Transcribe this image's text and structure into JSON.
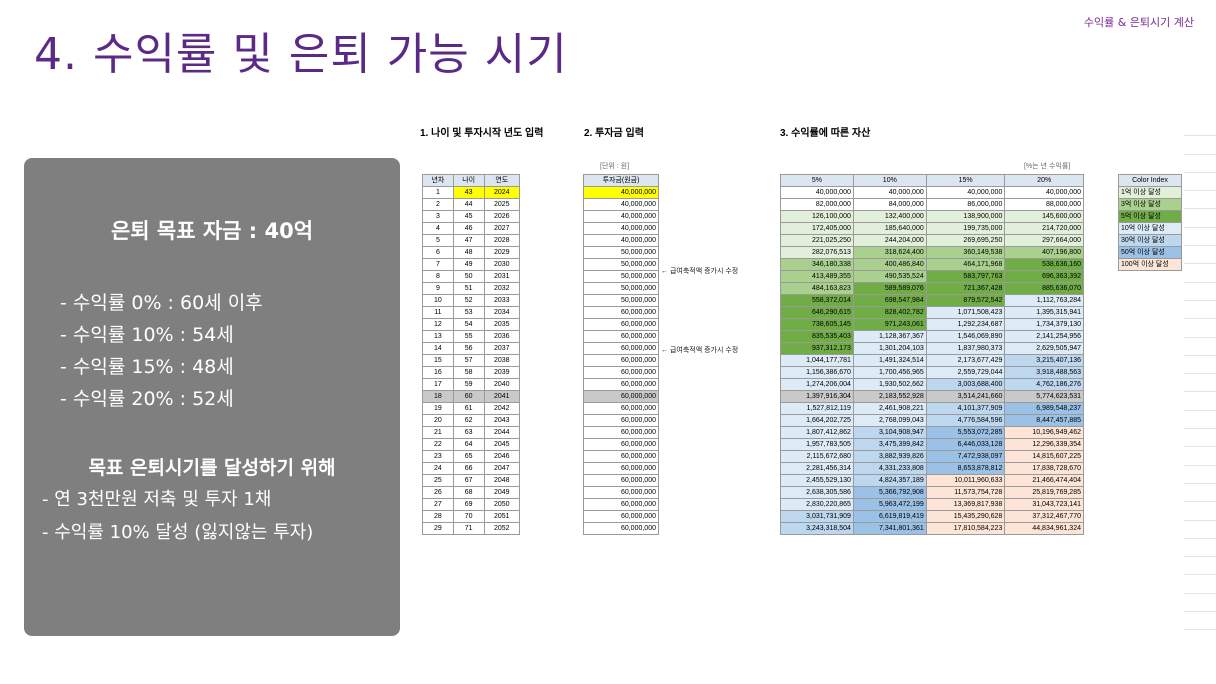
{
  "corner_label": "수익률 & 은퇴시기 계산",
  "title": "4. 수익률 및 은퇴 가능 시기",
  "panel": {
    "goal": "은퇴 목표 자금 : 40억",
    "rates": [
      "- 수익률   0% : 60세 이후",
      "- 수익률 10% : 54세",
      "- 수익률 15% : 48세",
      "- 수익률 20% : 52세"
    ],
    "subtitle": "목표 은퇴시기를 달성하기 위해",
    "notes": [
      "- 연 3천만원 저축 및 투자 1채",
      "- 수익률 10% 달성 (잃지않는 투자)"
    ]
  },
  "sheet": {
    "section1": "1. 나이 및 투자시작 년도 입력",
    "section2": "2. 투자금 입력",
    "section3": "3. 수익률에 따른 자산",
    "unit_won": "[단위 : 원]",
    "unit_rate": "[%는 년 수익률]",
    "headers1": [
      "년차",
      "나이",
      "연도"
    ],
    "header2": "투자금(원금)",
    "headers3": [
      "5%",
      "10%",
      "15%",
      "20%"
    ],
    "memo": "← 급여축적액 증가시 수정",
    "color_index_header": "Color Index",
    "color_index": [
      {
        "label": "1억 이상 달성",
        "color": "#e2efda"
      },
      {
        "label": "3억 이상 달성",
        "color": "#a9d08e"
      },
      {
        "label": "5억 이상 달성",
        "color": "#70ad47"
      },
      {
        "label": "10억 이상 달성",
        "color": "#ddebf7"
      },
      {
        "label": "30억 이상 달성",
        "color": "#bdd7ee"
      },
      {
        "label": "50억 이상 달성",
        "color": "#9bc2e6"
      },
      {
        "label": "100억 이상 달성",
        "color": "#fce4d6"
      }
    ],
    "rows": [
      [
        "1",
        "43",
        "2024",
        "40,000,000",
        "40,000,000",
        "40,000,000",
        "40,000,000",
        "40,000,000"
      ],
      [
        "2",
        "44",
        "2025",
        "40,000,000",
        "82,000,000",
        "84,000,000",
        "86,000,000",
        "88,000,000"
      ],
      [
        "3",
        "45",
        "2026",
        "40,000,000",
        "126,100,000",
        "132,400,000",
        "138,900,000",
        "145,600,000"
      ],
      [
        "4",
        "46",
        "2027",
        "40,000,000",
        "172,405,000",
        "185,640,000",
        "199,735,000",
        "214,720,000"
      ],
      [
        "5",
        "47",
        "2028",
        "40,000,000",
        "221,025,250",
        "244,204,000",
        "269,695,250",
        "297,664,000"
      ],
      [
        "6",
        "48",
        "2029",
        "50,000,000",
        "282,076,513",
        "318,624,400",
        "360,149,538",
        "407,196,800"
      ],
      [
        "7",
        "49",
        "2030",
        "50,000,000",
        "346,180,338",
        "400,486,840",
        "464,171,968",
        "538,636,160"
      ],
      [
        "8",
        "50",
        "2031",
        "50,000,000",
        "413,489,355",
        "490,535,524",
        "583,797,763",
        "696,363,392"
      ],
      [
        "9",
        "51",
        "2032",
        "50,000,000",
        "484,163,823",
        "589,589,076",
        "721,367,428",
        "885,636,070"
      ],
      [
        "10",
        "52",
        "2033",
        "50,000,000",
        "558,372,014",
        "698,547,984",
        "879,572,542",
        "1,112,763,284"
      ],
      [
        "11",
        "53",
        "2034",
        "60,000,000",
        "646,290,615",
        "828,402,782",
        "1,071,508,423",
        "1,395,315,941"
      ],
      [
        "12",
        "54",
        "2035",
        "60,000,000",
        "738,605,145",
        "971,243,061",
        "1,292,234,687",
        "1,734,379,130"
      ],
      [
        "13",
        "55",
        "2036",
        "60,000,000",
        "835,535,403",
        "1,128,367,367",
        "1,546,069,890",
        "2,141,254,956"
      ],
      [
        "14",
        "56",
        "2037",
        "60,000,000",
        "937,312,173",
        "1,301,204,103",
        "1,837,980,373",
        "2,629,505,947"
      ],
      [
        "15",
        "57",
        "2038",
        "60,000,000",
        "1,044,177,781",
        "1,491,324,514",
        "2,173,677,429",
        "3,215,407,136"
      ],
      [
        "16",
        "58",
        "2039",
        "60,000,000",
        "1,156,386,670",
        "1,700,456,965",
        "2,559,729,044",
        "3,918,488,563"
      ],
      [
        "17",
        "59",
        "2040",
        "60,000,000",
        "1,274,206,004",
        "1,930,502,662",
        "3,003,688,400",
        "4,762,186,276"
      ],
      [
        "18",
        "60",
        "2041",
        "60,000,000",
        "1,397,916,304",
        "2,183,552,928",
        "3,514,241,660",
        "5,774,623,531"
      ],
      [
        "19",
        "61",
        "2042",
        "60,000,000",
        "1,527,812,119",
        "2,461,908,221",
        "4,101,377,909",
        "6,989,548,237"
      ],
      [
        "20",
        "62",
        "2043",
        "60,000,000",
        "1,664,202,725",
        "2,768,099,043",
        "4,776,584,596",
        "8,447,457,885"
      ],
      [
        "21",
        "63",
        "2044",
        "60,000,000",
        "1,807,412,862",
        "3,104,908,947",
        "5,553,072,285",
        "10,196,949,462"
      ],
      [
        "22",
        "64",
        "2045",
        "60,000,000",
        "1,957,783,505",
        "3,475,399,842",
        "6,446,033,128",
        "12,296,339,354"
      ],
      [
        "23",
        "65",
        "2046",
        "60,000,000",
        "2,115,672,680",
        "3,882,939,826",
        "7,472,938,097",
        "14,815,607,225"
      ],
      [
        "24",
        "66",
        "2047",
        "60,000,000",
        "2,281,456,314",
        "4,331,233,808",
        "8,653,878,812",
        "17,838,728,670"
      ],
      [
        "25",
        "67",
        "2048",
        "60,000,000",
        "2,455,529,130",
        "4,824,357,189",
        "10,011,960,633",
        "21,466,474,404"
      ],
      [
        "26",
        "68",
        "2049",
        "60,000,000",
        "2,638,305,586",
        "5,366,792,908",
        "11,573,754,728",
        "25,819,769,285"
      ],
      [
        "27",
        "69",
        "2050",
        "60,000,000",
        "2,830,220,865",
        "5,963,472,199",
        "13,369,817,938",
        "31,043,723,141"
      ],
      [
        "28",
        "70",
        "2051",
        "60,000,000",
        "3,031,731,909",
        "6,619,819,419",
        "15,435,290,628",
        "37,312,467,770"
      ],
      [
        "29",
        "71",
        "2052",
        "60,000,000",
        "3,243,318,504",
        "7,341,801,361",
        "17,810,584,223",
        "44,834,961,324"
      ]
    ],
    "highlight_row_year": "2041"
  }
}
